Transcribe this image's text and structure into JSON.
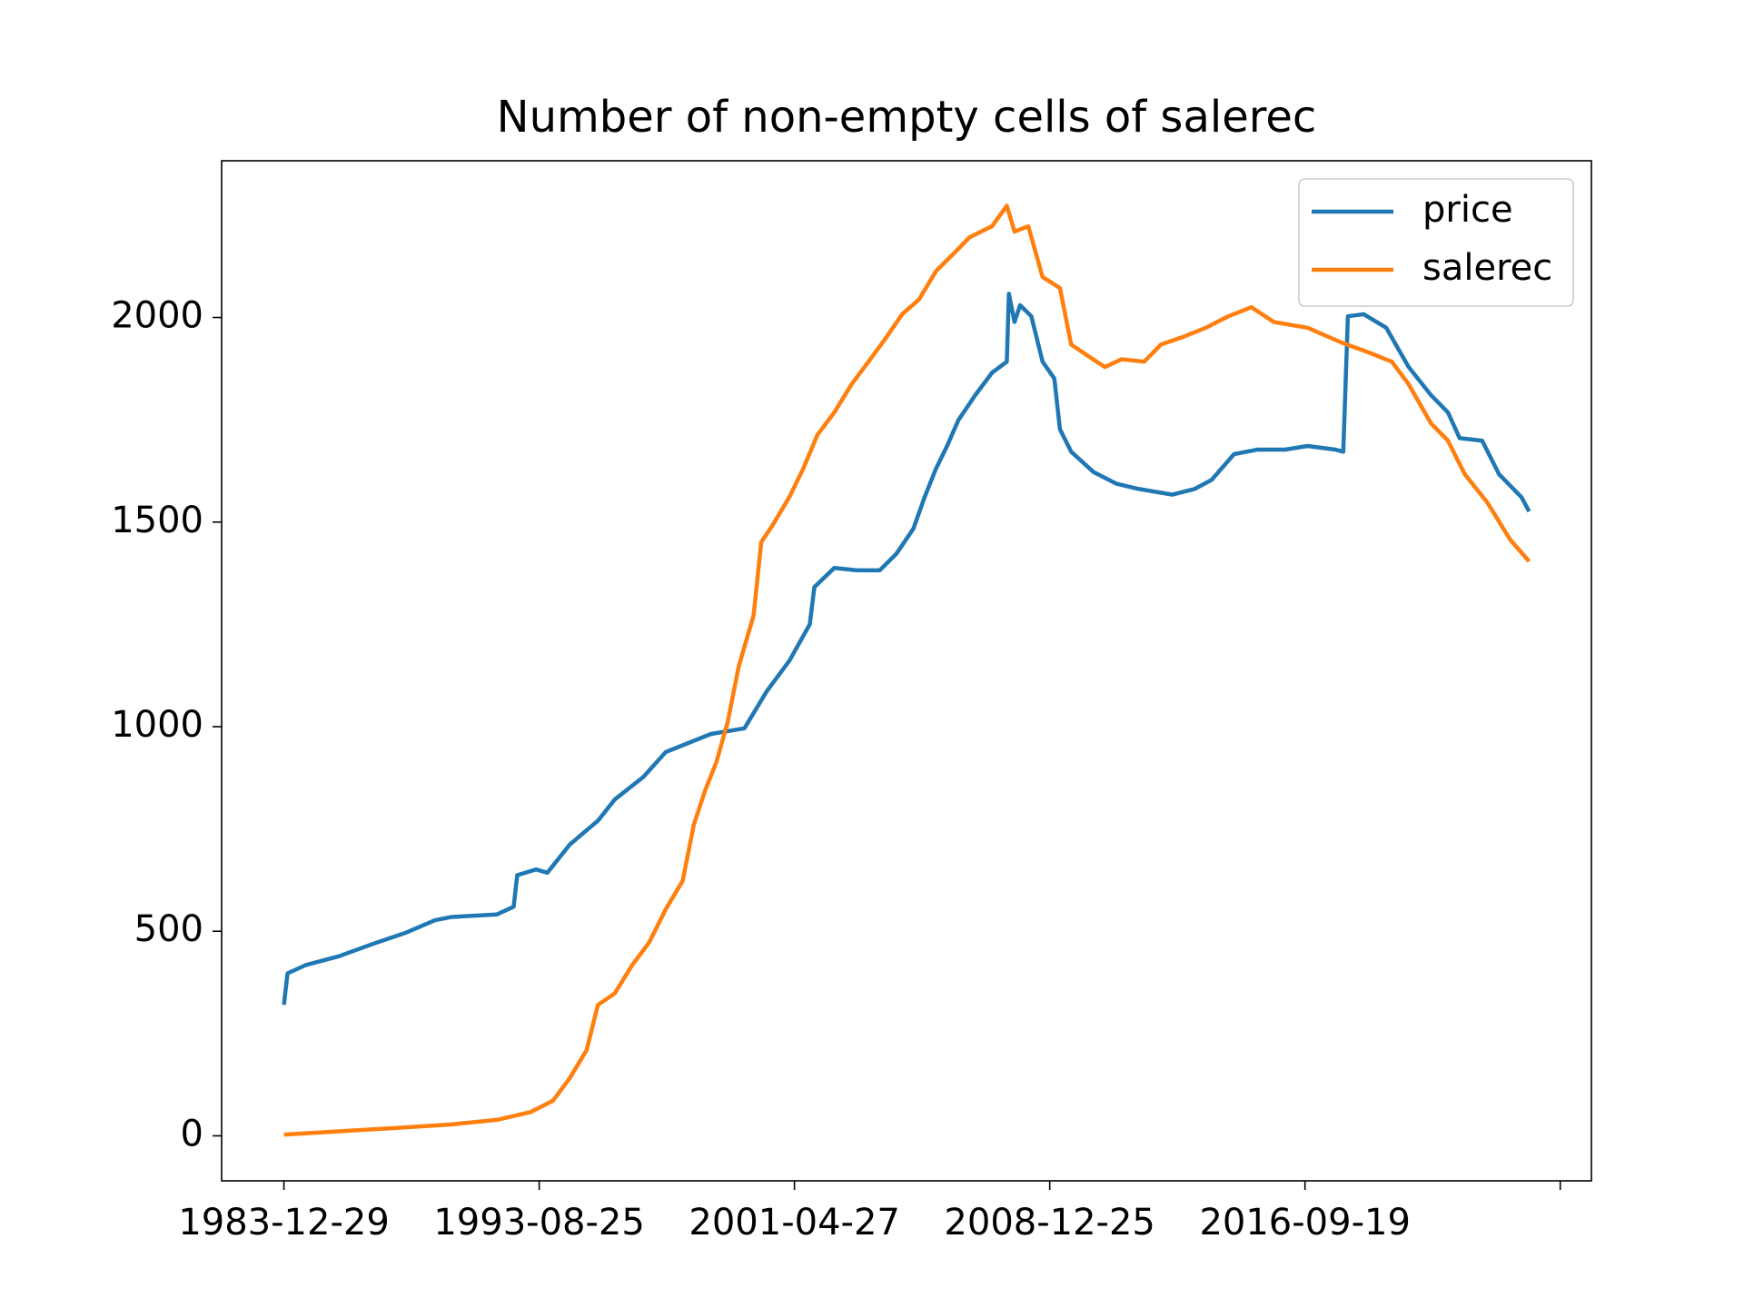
{
  "chart_data": {
    "type": "line",
    "title": "Number of non-empty cells of salerec",
    "xlim": [
      -122,
      2561
    ],
    "ylim": [
      -110,
      2383
    ],
    "xticks": [
      {
        "value": 0,
        "label": "1983-12-29"
      },
      {
        "value": 500,
        "label": "1993-08-25"
      },
      {
        "value": 1000,
        "label": "2001-04-27"
      },
      {
        "value": 1500,
        "label": "2008-12-25"
      },
      {
        "value": 2000,
        "label": "2016-09-19"
      },
      {
        "value": 2500,
        "label": null
      }
    ],
    "yticks": [
      0,
      500,
      1000,
      1500,
      2000
    ],
    "legend": "upper right",
    "grid": false,
    "series": [
      {
        "name": "price",
        "color": "#1f77b4",
        "x": [
          0,
          7,
          42,
          108,
          174,
          240,
          296,
          329,
          417,
          450,
          457,
          494,
          516,
          560,
          615,
          648,
          704,
          748,
          792,
          836,
          902,
          946,
          990,
          1030,
          1039,
          1078,
          1123,
          1167,
          1200,
          1233,
          1255,
          1277,
          1299,
          1321,
          1354,
          1387,
          1416,
          1420,
          1431,
          1442,
          1464,
          1486,
          1509,
          1520,
          1542,
          1586,
          1630,
          1674,
          1740,
          1784,
          1817,
          1861,
          1906,
          1961,
          2005,
          2060,
          2075,
          2084,
          2115,
          2159,
          2203,
          2247,
          2280,
          2303,
          2347,
          2380,
          2424,
          2439
        ],
        "values": [
          320,
          397,
          417,
          439,
          469,
          497,
          527,
          535,
          541,
          560,
          637,
          651,
          643,
          712,
          770,
          822,
          877,
          938,
          960,
          982,
          996,
          1087,
          1161,
          1250,
          1341,
          1388,
          1382,
          1382,
          1423,
          1484,
          1561,
          1630,
          1686,
          1749,
          1810,
          1865,
          1892,
          2058,
          1989,
          2030,
          2003,
          1892,
          1851,
          1727,
          1672,
          1622,
          1594,
          1581,
          1567,
          1581,
          1603,
          1666,
          1677,
          1677,
          1686,
          1677,
          1672,
          2003,
          2008,
          1975,
          1879,
          1810,
          1768,
          1705,
          1699,
          1617,
          1561,
          1526
        ]
      },
      {
        "name": "salerec",
        "color": "#ff7f0e",
        "x": [
          0,
          108,
          218,
          329,
          417,
          483,
          527,
          560,
          593,
          615,
          648,
          682,
          715,
          748,
          781,
          803,
          825,
          847,
          869,
          891,
          920,
          935,
          957,
          990,
          1017,
          1045,
          1078,
          1112,
          1145,
          1178,
          1211,
          1244,
          1277,
          1310,
          1343,
          1387,
          1416,
          1431,
          1458,
          1486,
          1520,
          1542,
          1575,
          1608,
          1641,
          1685,
          1718,
          1762,
          1806,
          1850,
          1895,
          1939,
          2005,
          2071,
          2126,
          2170,
          2203,
          2247,
          2280,
          2313,
          2357,
          2402,
          2439
        ],
        "values": [
          3,
          11,
          19,
          28,
          39,
          58,
          86,
          141,
          210,
          320,
          348,
          417,
          472,
          554,
          623,
          761,
          844,
          913,
          1010,
          1148,
          1272,
          1451,
          1492,
          1561,
          1630,
          1713,
          1768,
          1837,
          1892,
          1948,
          2008,
          2044,
          2113,
          2154,
          2196,
          2223,
          2273,
          2210,
          2223,
          2099,
          2072,
          1934,
          1906,
          1879,
          1898,
          1892,
          1934,
          1953,
          1975,
          2003,
          2025,
          1989,
          1975,
          1939,
          1914,
          1892,
          1837,
          1741,
          1699,
          1617,
          1548,
          1457,
          1404
        ]
      }
    ]
  }
}
